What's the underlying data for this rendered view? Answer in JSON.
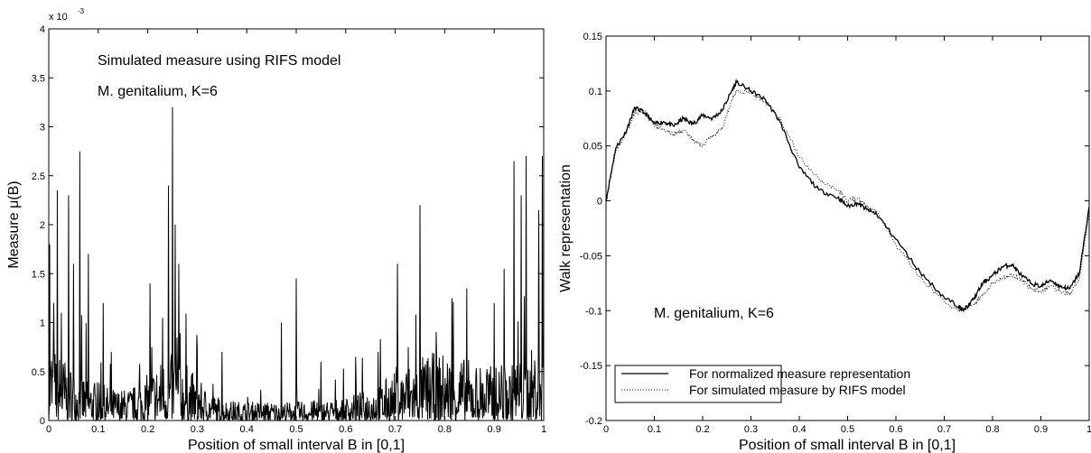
{
  "chart_data": [
    {
      "type": "line",
      "title": "",
      "exponent_label": "x 10",
      "exponent_power": "-3",
      "xlabel": "Position of small interval B in [0,1]",
      "ylabel": "Measure μ(B)",
      "xlim": [
        0,
        1
      ],
      "ylim": [
        0,
        4
      ],
      "xticks": [
        "0",
        "0.1",
        "0.2",
        "0.3",
        "0.4",
        "0.5",
        "0.6",
        "0.7",
        "0.8",
        "0.9",
        "1"
      ],
      "yticks": [
        "0",
        "0.5",
        "1",
        "1.5",
        "2",
        "2.5",
        "3",
        "3.5",
        "4"
      ],
      "annotations": [
        "Simulated measure using RIFS model",
        "M. genitalium, K=6"
      ],
      "peaks": [
        {
          "x": 0.002,
          "y": 1.8
        },
        {
          "x": 0.005,
          "y": 0.6
        },
        {
          "x": 0.01,
          "y": 1.2
        },
        {
          "x": 0.017,
          "y": 2.35
        },
        {
          "x": 0.025,
          "y": 1.1
        },
        {
          "x": 0.04,
          "y": 2.3
        },
        {
          "x": 0.05,
          "y": 1.6
        },
        {
          "x": 0.063,
          "y": 2.75
        },
        {
          "x": 0.08,
          "y": 1.7
        },
        {
          "x": 0.11,
          "y": 1.2
        },
        {
          "x": 0.155,
          "y": 1.25
        },
        {
          "x": 0.185,
          "y": 1.7
        },
        {
          "x": 0.205,
          "y": 1.4
        },
        {
          "x": 0.215,
          "y": 1.45
        },
        {
          "x": 0.23,
          "y": 1.05
        },
        {
          "x": 0.242,
          "y": 2.4
        },
        {
          "x": 0.25,
          "y": 3.2
        },
        {
          "x": 0.255,
          "y": 2.0
        },
        {
          "x": 0.263,
          "y": 1.6
        },
        {
          "x": 0.3,
          "y": 0.75
        },
        {
          "x": 0.35,
          "y": 0.7
        },
        {
          "x": 0.47,
          "y": 1.0
        },
        {
          "x": 0.5,
          "y": 1.45
        },
        {
          "x": 0.515,
          "y": 1.1
        },
        {
          "x": 0.55,
          "y": 0.6
        },
        {
          "x": 0.62,
          "y": 0.65
        },
        {
          "x": 0.665,
          "y": 0.7
        },
        {
          "x": 0.705,
          "y": 1.6
        },
        {
          "x": 0.735,
          "y": 1.4
        },
        {
          "x": 0.75,
          "y": 2.2
        },
        {
          "x": 0.765,
          "y": 1.65
        },
        {
          "x": 0.815,
          "y": 1.25
        },
        {
          "x": 0.845,
          "y": 1.35
        },
        {
          "x": 0.875,
          "y": 1.1
        },
        {
          "x": 0.9,
          "y": 1.2
        },
        {
          "x": 0.92,
          "y": 1.55
        },
        {
          "x": 0.94,
          "y": 2.65
        },
        {
          "x": 0.955,
          "y": 2.3
        },
        {
          "x": 0.965,
          "y": 2.7
        },
        {
          "x": 0.975,
          "y": 1.65
        },
        {
          "x": 0.985,
          "y": 2.15
        },
        {
          "x": 0.99,
          "y": 2.15
        },
        {
          "x": 0.997,
          "y": 2.7
        }
      ],
      "baseline_level": 0.35
    },
    {
      "type": "line",
      "title": "",
      "xlabel": "Position of small interval B in [0,1]",
      "ylabel": "Walk representation",
      "xlim": [
        0,
        1
      ],
      "ylim": [
        -0.2,
        0.15
      ],
      "xticks": [
        "0",
        "0.1",
        "0.2",
        "0.3",
        "0.4",
        "0.5",
        "0.6",
        "0.7",
        "0.8",
        "0.9",
        "1"
      ],
      "yticks": [
        "-0.2",
        "-0.15",
        "-0.1",
        "-0.05",
        "0",
        "0.05",
        "0.1",
        "0.15"
      ],
      "annotations": [
        "M. genitalium, K=6"
      ],
      "legend_position": "bottom-left",
      "series": [
        {
          "name": "For normalized measure representation",
          "style": "solid",
          "x": [
            0,
            0.02,
            0.04,
            0.06,
            0.08,
            0.1,
            0.12,
            0.14,
            0.16,
            0.18,
            0.2,
            0.22,
            0.24,
            0.26,
            0.27,
            0.3,
            0.33,
            0.36,
            0.4,
            0.44,
            0.48,
            0.5,
            0.52,
            0.54,
            0.56,
            0.6,
            0.65,
            0.7,
            0.73,
            0.74,
            0.76,
            0.78,
            0.8,
            0.82,
            0.84,
            0.86,
            0.88,
            0.9,
            0.92,
            0.94,
            0.96,
            0.98,
            1.0
          ],
          "y": [
            0.0,
            0.048,
            0.062,
            0.085,
            0.08,
            0.07,
            0.072,
            0.068,
            0.075,
            0.07,
            0.078,
            0.075,
            0.082,
            0.1,
            0.108,
            0.1,
            0.092,
            0.072,
            0.03,
            0.01,
            0.003,
            -0.005,
            -0.002,
            -0.008,
            -0.012,
            -0.035,
            -0.065,
            -0.088,
            -0.096,
            -0.1,
            -0.09,
            -0.075,
            -0.068,
            -0.06,
            -0.058,
            -0.068,
            -0.075,
            -0.078,
            -0.072,
            -0.078,
            -0.08,
            -0.065,
            -0.005
          ]
        },
        {
          "name": "For simulated measure by RIFS model",
          "style": "dotted",
          "x": [
            0,
            0.02,
            0.04,
            0.06,
            0.08,
            0.1,
            0.12,
            0.14,
            0.16,
            0.18,
            0.2,
            0.22,
            0.24,
            0.26,
            0.27,
            0.3,
            0.33,
            0.36,
            0.4,
            0.44,
            0.48,
            0.5,
            0.52,
            0.54,
            0.56,
            0.6,
            0.65,
            0.7,
            0.73,
            0.74,
            0.76,
            0.78,
            0.8,
            0.82,
            0.84,
            0.86,
            0.88,
            0.9,
            0.92,
            0.94,
            0.96,
            0.98,
            1.0
          ],
          "y": [
            0.0,
            0.045,
            0.06,
            0.08,
            0.082,
            0.068,
            0.065,
            0.06,
            0.065,
            0.055,
            0.05,
            0.06,
            0.065,
            0.092,
            0.1,
            0.098,
            0.09,
            0.075,
            0.04,
            0.02,
            0.01,
            0.0,
            0.002,
            -0.005,
            -0.01,
            -0.04,
            -0.07,
            -0.092,
            -0.1,
            -0.098,
            -0.095,
            -0.085,
            -0.075,
            -0.07,
            -0.068,
            -0.072,
            -0.08,
            -0.082,
            -0.078,
            -0.082,
            -0.085,
            -0.07,
            -0.01
          ]
        }
      ]
    }
  ]
}
